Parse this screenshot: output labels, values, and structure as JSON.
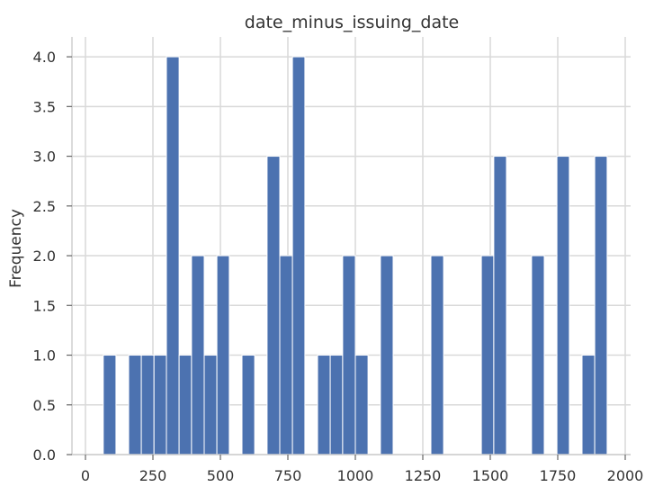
{
  "chart_data": {
    "type": "bar",
    "title": "date_minus_issuing_date",
    "xlabel": "",
    "ylabel": "Frequency",
    "xlim": [
      -50,
      2020
    ],
    "ylim": [
      0,
      4.2
    ],
    "grid": true,
    "bar_color": "#4c72b0",
    "xticks": [
      0,
      250,
      500,
      750,
      1000,
      1250,
      1500,
      1750,
      2000
    ],
    "xtick_labels": [
      "0",
      "250",
      "500",
      "750",
      "1000",
      "1250",
      "1500",
      "1750",
      "2000"
    ],
    "yticks": [
      0,
      0.5,
      1,
      1.5,
      2,
      2.5,
      3,
      3.5,
      4
    ],
    "ytick_labels": [
      "0.0",
      "0.5",
      "1.0",
      "1.5",
      "2.0",
      "2.5",
      "3.0",
      "3.5",
      "4.0"
    ],
    "bins": [
      {
        "start": 66,
        "end": 113,
        "value": 1
      },
      {
        "start": 160,
        "end": 207,
        "value": 1
      },
      {
        "start": 207,
        "end": 254,
        "value": 1
      },
      {
        "start": 254,
        "end": 300,
        "value": 1
      },
      {
        "start": 300,
        "end": 347,
        "value": 4
      },
      {
        "start": 347,
        "end": 393,
        "value": 1
      },
      {
        "start": 393,
        "end": 440,
        "value": 2
      },
      {
        "start": 440,
        "end": 487,
        "value": 1
      },
      {
        "start": 487,
        "end": 533,
        "value": 2
      },
      {
        "start": 580,
        "end": 627,
        "value": 1
      },
      {
        "start": 673,
        "end": 720,
        "value": 3
      },
      {
        "start": 720,
        "end": 767,
        "value": 2
      },
      {
        "start": 767,
        "end": 813,
        "value": 4
      },
      {
        "start": 860,
        "end": 907,
        "value": 1
      },
      {
        "start": 907,
        "end": 953,
        "value": 1
      },
      {
        "start": 953,
        "end": 1000,
        "value": 2
      },
      {
        "start": 1000,
        "end": 1047,
        "value": 1
      },
      {
        "start": 1093,
        "end": 1140,
        "value": 2
      },
      {
        "start": 1280,
        "end": 1327,
        "value": 2
      },
      {
        "start": 1467,
        "end": 1513,
        "value": 2
      },
      {
        "start": 1513,
        "end": 1560,
        "value": 3
      },
      {
        "start": 1653,
        "end": 1700,
        "value": 2
      },
      {
        "start": 1747,
        "end": 1793,
        "value": 3
      },
      {
        "start": 1840,
        "end": 1887,
        "value": 1
      },
      {
        "start": 1887,
        "end": 1933,
        "value": 3
      }
    ]
  }
}
